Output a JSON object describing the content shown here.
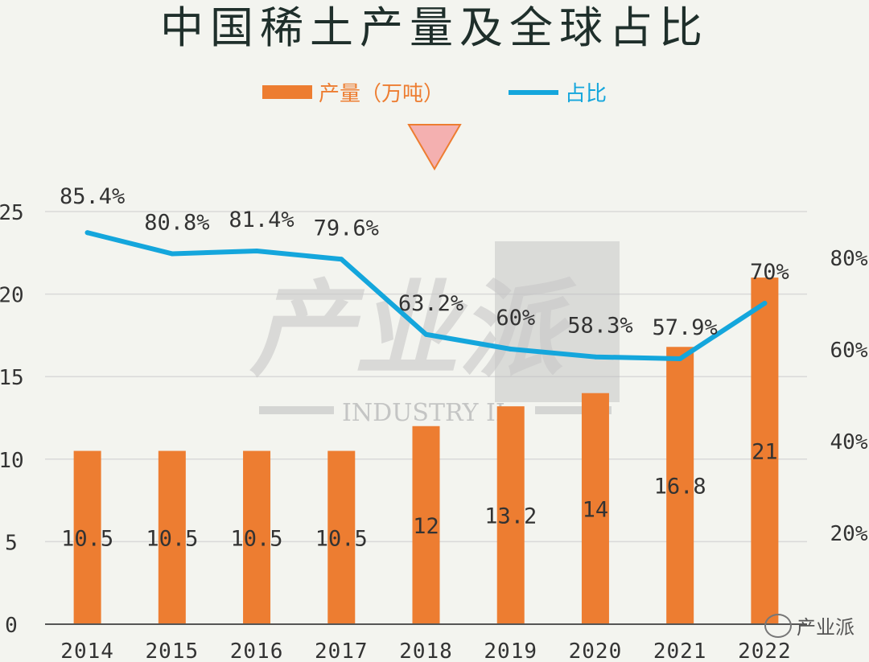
{
  "title": "中国稀土产量及全球占比",
  "watermark": {
    "brand": "产业派",
    "sub": "INDUSTRY II",
    "footer": "产业派"
  },
  "colors": {
    "bar": "#ed7d31",
    "line": "#14a6dc",
    "grid": "#d9d9d9",
    "marker": "#f4b0b0"
  },
  "chart_data": {
    "type": "bar",
    "categories": [
      "2014",
      "2015",
      "2016",
      "2017",
      "2018",
      "2019",
      "2020",
      "2021",
      "2022"
    ],
    "series": [
      {
        "name": "产量（万吨）",
        "type": "bar",
        "axis": "left",
        "values": [
          10.5,
          10.5,
          10.5,
          10.5,
          12,
          13.2,
          14,
          16.8,
          21
        ],
        "labels": [
          "10.5",
          "10.5",
          "10.5",
          "10.5",
          "12",
          "13.2",
          "14",
          "16.8",
          "21"
        ]
      },
      {
        "name": "占比",
        "type": "line",
        "axis": "right",
        "values": [
          85.4,
          80.8,
          81.4,
          79.6,
          63.2,
          60,
          58.3,
          57.9,
          70
        ],
        "labels": [
          "85.4%",
          "80.8%",
          "81.4%",
          "79.6%",
          "63.2%",
          "60%",
          "58.3%",
          "57.9%",
          "70%"
        ]
      }
    ],
    "y_left": {
      "min": 0,
      "max": 25,
      "ticks": [
        "0",
        "5",
        "10",
        "15",
        "20",
        "25"
      ]
    },
    "y_right": {
      "min": 0,
      "max": 90,
      "ticks": [
        "20%",
        "40%",
        "60%",
        "80%"
      ],
      "tick_values": [
        20,
        40,
        60,
        80
      ]
    },
    "legend_position": "top",
    "grid": true
  }
}
